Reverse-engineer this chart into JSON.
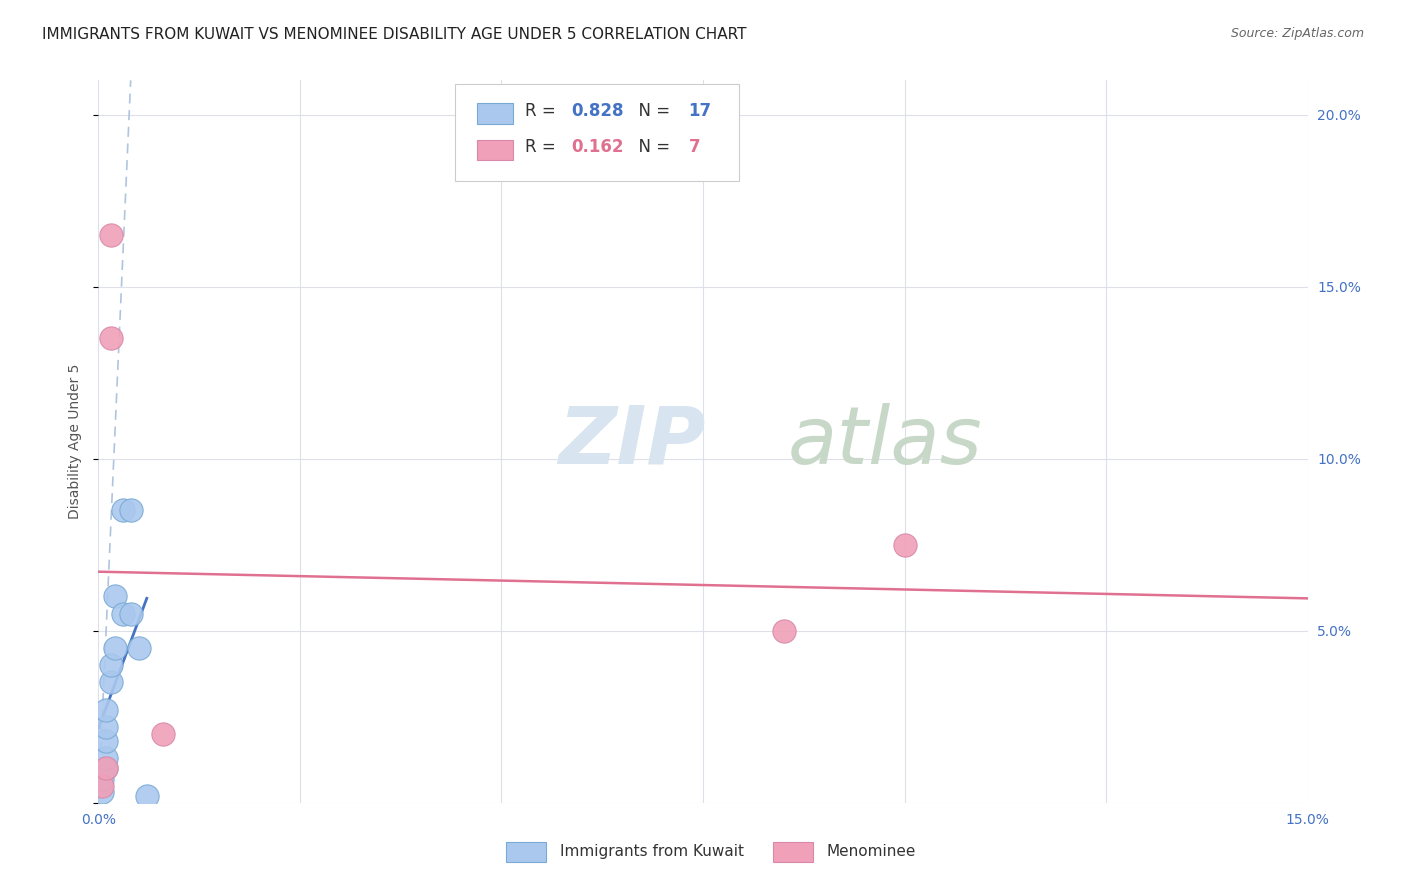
{
  "title": "IMMIGRANTS FROM KUWAIT VS MENOMINEE DISABILITY AGE UNDER 5 CORRELATION CHART",
  "source": "Source: ZipAtlas.com",
  "ylabel": "Disability Age Under 5",
  "xlim": [
    0.0,
    0.15
  ],
  "ylim": [
    0.0,
    0.21
  ],
  "xticks": [
    0.0,
    0.025,
    0.05,
    0.075,
    0.1,
    0.125,
    0.15
  ],
  "yticks": [
    0.0,
    0.05,
    0.1,
    0.15,
    0.2
  ],
  "blue_scatter_x": [
    0.0005,
    0.0005,
    0.001,
    0.001,
    0.001,
    0.001,
    0.001,
    0.0015,
    0.0015,
    0.002,
    0.002,
    0.003,
    0.003,
    0.004,
    0.004,
    0.005,
    0.006
  ],
  "blue_scatter_y": [
    0.003,
    0.007,
    0.01,
    0.013,
    0.018,
    0.022,
    0.027,
    0.035,
    0.04,
    0.045,
    0.06,
    0.055,
    0.085,
    0.055,
    0.085,
    0.045,
    0.002
  ],
  "pink_scatter_x": [
    0.0005,
    0.001,
    0.0015,
    0.0015,
    0.008,
    0.085,
    0.1
  ],
  "pink_scatter_y": [
    0.005,
    0.01,
    0.135,
    0.165,
    0.02,
    0.05,
    0.075
  ],
  "blue_R": 0.828,
  "blue_N": 17,
  "pink_R": 0.162,
  "pink_N": 7,
  "blue_scatter_color": "#aac8ee",
  "pink_scatter_color": "#f0a0b8",
  "blue_line_color": "#4472c4",
  "pink_line_color": "#e07090",
  "dashed_line_color": "#b0c4de",
  "background_color": "#ffffff",
  "grid_color": "#dde0e8",
  "watermark_color": "#d8e4f0",
  "title_fontsize": 11,
  "axis_label_fontsize": 10,
  "tick_fontsize": 10,
  "legend_fontsize": 12,
  "source_fontsize": 9
}
